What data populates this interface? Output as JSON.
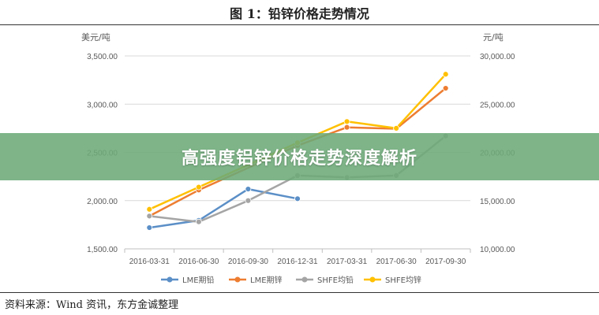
{
  "figure": {
    "title": "图 1：铅锌价格走势情况",
    "source": "资料来源：Wind 资讯，东方金诚整理"
  },
  "banner": {
    "text": "高强度铝锌价格走势深度解析",
    "color": "#6caa78"
  },
  "chart_data": {
    "type": "line",
    "y_left_unit": "美元/吨",
    "y_right_unit": "元/吨",
    "y_left_ticks": [
      "1,500.00",
      "2,000.00",
      "2,500.00",
      "3,000.00",
      "3,500.00"
    ],
    "y_right_ticks": [
      "10,000.00",
      "15,000.00",
      "20,000.00",
      "25,000.00",
      "30,000.00"
    ],
    "ylim_left": [
      1500,
      3500
    ],
    "ylim_right": [
      10000,
      30000
    ],
    "categories": [
      "2016-03-31",
      "2016-06-30",
      "2016-09-30",
      "2016-12-31",
      "2017-03-31",
      "2017-06-30",
      "2017-09-30"
    ],
    "series": [
      {
        "name": "LME期铅",
        "axis": "left",
        "color": "#5b8fc7",
        "values": [
          1720,
          1795,
          2120,
          2020,
          null,
          null,
          null
        ]
      },
      {
        "name": "LME期锌",
        "axis": "left",
        "color": "#ed7d31",
        "values": [
          1840,
          2110,
          null,
          2570,
          2760,
          2745,
          3165
        ]
      },
      {
        "name": "SHFE均铅",
        "axis": "right",
        "color": "#a5a5a5",
        "values": [
          13400,
          12800,
          15000,
          17600,
          17400,
          17600,
          21700
        ]
      },
      {
        "name": "SHFE均锌",
        "axis": "right",
        "color": "#ffc000",
        "values": [
          14100,
          16400,
          null,
          21000,
          23200,
          22500,
          28100
        ]
      }
    ],
    "grid": true,
    "legend": "bottom"
  }
}
